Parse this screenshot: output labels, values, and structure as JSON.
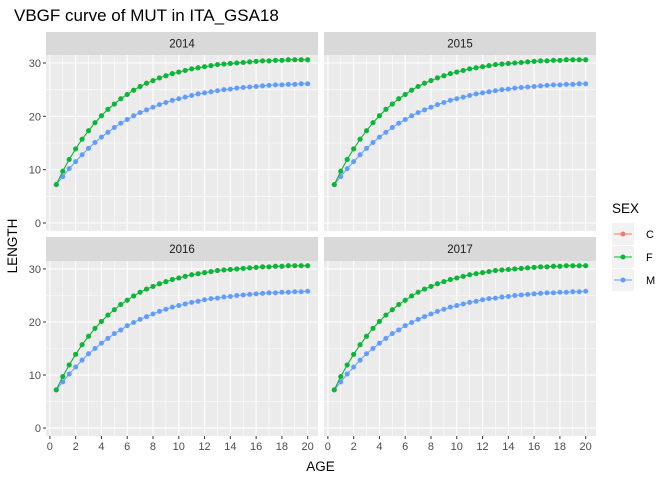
{
  "chart_data": {
    "type": "line",
    "title": "VBGF curve of MUT in ITA_GSA18",
    "xlabel": "AGE",
    "ylabel": "LENGTH",
    "xlim": [
      -0.3,
      20.8
    ],
    "ylim": [
      -1.5,
      31.5
    ],
    "x_ticks": [
      0,
      2,
      4,
      6,
      8,
      10,
      12,
      14,
      16,
      18,
      20
    ],
    "y_ticks": [
      0,
      10,
      20,
      30
    ],
    "x": [
      0.5,
      1.0,
      1.5,
      2.0,
      2.5,
      3.0,
      3.5,
      4.0,
      4.5,
      5.0,
      5.5,
      6.0,
      6.5,
      7.0,
      7.5,
      8.0,
      8.5,
      9.0,
      9.5,
      10.0,
      10.5,
      11.0,
      11.5,
      12.0,
      12.5,
      13.0,
      13.5,
      14.0,
      14.5,
      15.0,
      15.5,
      16.0,
      16.5,
      17.0,
      17.5,
      18.0,
      18.5,
      19.0,
      19.5,
      20.0
    ],
    "grid": true,
    "legend": {
      "title": "SEX",
      "position": "right",
      "entries": [
        {
          "label": "C",
          "color": "#F8766D"
        },
        {
          "label": "F",
          "color": "#00BA38"
        },
        {
          "label": "M",
          "color": "#619CFF"
        }
      ]
    },
    "panels": [
      {
        "label": "2014",
        "series": [
          {
            "name": "M",
            "color": "#619CFF",
            "values": [
              7.2,
              8.7,
              10.2,
              11.5,
              12.8,
              14.0,
              15.1,
              16.1,
              17.0,
              17.9,
              18.7,
              19.4,
              20.1,
              20.7,
              21.2,
              21.7,
              22.2,
              22.6,
              23.0,
              23.3,
              23.6,
              23.9,
              24.2,
              24.4,
              24.6,
              24.8,
              25.0,
              25.1,
              25.3,
              25.4,
              25.5,
              25.6,
              25.7,
              25.8,
              25.9,
              25.9,
              26.0,
              26.0,
              26.1,
              26.1
            ]
          },
          {
            "name": "C",
            "color": "#F8766D",
            "values": [
              7.2,
              9.7,
              11.9,
              13.9,
              15.7,
              17.3,
              18.8,
              20.1,
              21.3,
              22.3,
              23.3,
              24.1,
              24.9,
              25.6,
              26.2,
              26.7,
              27.2,
              27.6,
              28.0,
              28.3,
              28.6,
              28.9,
              29.1,
              29.3,
              29.5,
              29.7,
              29.8,
              29.9,
              30.0,
              30.1,
              30.2,
              30.3,
              30.4,
              30.4,
              30.5,
              30.5,
              30.6,
              30.6,
              30.6,
              30.6
            ]
          },
          {
            "name": "F",
            "color": "#00BA38",
            "values": [
              7.2,
              9.7,
              11.9,
              13.9,
              15.7,
              17.3,
              18.8,
              20.1,
              21.3,
              22.3,
              23.3,
              24.1,
              24.9,
              25.6,
              26.2,
              26.7,
              27.2,
              27.6,
              28.0,
              28.3,
              28.6,
              28.9,
              29.1,
              29.3,
              29.5,
              29.7,
              29.8,
              29.9,
              30.0,
              30.1,
              30.2,
              30.3,
              30.4,
              30.4,
              30.5,
              30.5,
              30.6,
              30.6,
              30.6,
              30.6
            ]
          }
        ]
      },
      {
        "label": "2015",
        "series": [
          {
            "name": "M",
            "color": "#619CFF",
            "values": [
              7.2,
              8.7,
              10.2,
              11.5,
              12.8,
              14.0,
              15.1,
              16.1,
              17.0,
              17.9,
              18.7,
              19.4,
              20.1,
              20.7,
              21.2,
              21.7,
              22.2,
              22.6,
              23.0,
              23.3,
              23.6,
              23.9,
              24.2,
              24.4,
              24.6,
              24.8,
              25.0,
              25.1,
              25.3,
              25.4,
              25.5,
              25.6,
              25.7,
              25.8,
              25.9,
              25.9,
              26.0,
              26.0,
              26.1,
              26.1
            ]
          },
          {
            "name": "C",
            "color": "#F8766D",
            "values": [
              7.2,
              9.7,
              11.9,
              13.9,
              15.7,
              17.3,
              18.8,
              20.1,
              21.3,
              22.3,
              23.3,
              24.1,
              24.9,
              25.6,
              26.2,
              26.7,
              27.2,
              27.6,
              28.0,
              28.3,
              28.6,
              28.9,
              29.1,
              29.3,
              29.5,
              29.7,
              29.8,
              29.9,
              30.0,
              30.1,
              30.2,
              30.3,
              30.4,
              30.4,
              30.5,
              30.5,
              30.6,
              30.6,
              30.6,
              30.6
            ]
          },
          {
            "name": "F",
            "color": "#00BA38",
            "values": [
              7.2,
              9.7,
              11.9,
              13.9,
              15.7,
              17.3,
              18.8,
              20.1,
              21.3,
              22.3,
              23.3,
              24.1,
              24.9,
              25.6,
              26.2,
              26.7,
              27.2,
              27.6,
              28.0,
              28.3,
              28.6,
              28.9,
              29.1,
              29.3,
              29.5,
              29.7,
              29.8,
              29.9,
              30.0,
              30.1,
              30.2,
              30.3,
              30.4,
              30.4,
              30.5,
              30.5,
              30.6,
              30.6,
              30.6,
              30.6
            ]
          }
        ]
      },
      {
        "label": "2016",
        "series": [
          {
            "name": "M",
            "color": "#619CFF",
            "values": [
              7.2,
              8.7,
              10.2,
              11.5,
              12.8,
              14.0,
              15.0,
              16.0,
              16.9,
              17.8,
              18.5,
              19.3,
              19.9,
              20.5,
              21.0,
              21.5,
              22.0,
              22.4,
              22.8,
              23.1,
              23.4,
              23.7,
              23.9,
              24.2,
              24.4,
              24.5,
              24.7,
              24.8,
              25.0,
              25.1,
              25.2,
              25.3,
              25.4,
              25.5,
              25.5,
              25.6,
              25.6,
              25.7,
              25.7,
              25.8
            ]
          },
          {
            "name": "C",
            "color": "#F8766D",
            "values": [
              7.2,
              9.7,
              11.9,
              13.9,
              15.7,
              17.3,
              18.8,
              20.1,
              21.3,
              22.3,
              23.3,
              24.1,
              24.9,
              25.6,
              26.2,
              26.7,
              27.2,
              27.6,
              28.0,
              28.3,
              28.6,
              28.9,
              29.1,
              29.3,
              29.5,
              29.7,
              29.8,
              29.9,
              30.0,
              30.1,
              30.2,
              30.3,
              30.4,
              30.4,
              30.5,
              30.5,
              30.6,
              30.6,
              30.6,
              30.6
            ]
          },
          {
            "name": "F",
            "color": "#00BA38",
            "values": [
              7.2,
              9.7,
              11.9,
              13.9,
              15.7,
              17.3,
              18.8,
              20.1,
              21.3,
              22.3,
              23.3,
              24.1,
              24.9,
              25.6,
              26.2,
              26.7,
              27.2,
              27.6,
              28.0,
              28.3,
              28.6,
              28.9,
              29.1,
              29.3,
              29.5,
              29.7,
              29.8,
              29.9,
              30.0,
              30.1,
              30.2,
              30.3,
              30.4,
              30.4,
              30.5,
              30.5,
              30.6,
              30.6,
              30.6,
              30.6
            ]
          }
        ]
      },
      {
        "label": "2017",
        "series": [
          {
            "name": "M",
            "color": "#619CFF",
            "values": [
              7.2,
              8.7,
              10.2,
              11.5,
              12.8,
              14.0,
              15.0,
              16.0,
              16.9,
              17.8,
              18.5,
              19.3,
              19.9,
              20.5,
              21.0,
              21.5,
              22.0,
              22.4,
              22.8,
              23.1,
              23.4,
              23.7,
              23.9,
              24.2,
              24.4,
              24.5,
              24.7,
              24.8,
              25.0,
              25.1,
              25.2,
              25.3,
              25.4,
              25.5,
              25.5,
              25.6,
              25.6,
              25.7,
              25.7,
              25.8
            ]
          },
          {
            "name": "C",
            "color": "#F8766D",
            "values": [
              7.2,
              9.7,
              11.9,
              13.9,
              15.7,
              17.3,
              18.8,
              20.1,
              21.3,
              22.3,
              23.3,
              24.1,
              24.9,
              25.6,
              26.2,
              26.7,
              27.2,
              27.6,
              28.0,
              28.3,
              28.6,
              28.9,
              29.1,
              29.3,
              29.5,
              29.7,
              29.8,
              29.9,
              30.0,
              30.1,
              30.2,
              30.3,
              30.4,
              30.4,
              30.5,
              30.5,
              30.6,
              30.6,
              30.6,
              30.6
            ]
          },
          {
            "name": "F",
            "color": "#00BA38",
            "values": [
              7.2,
              9.7,
              11.9,
              13.9,
              15.7,
              17.3,
              18.8,
              20.1,
              21.3,
              22.3,
              23.3,
              24.1,
              24.9,
              25.6,
              26.2,
              26.7,
              27.2,
              27.6,
              28.0,
              28.3,
              28.6,
              28.9,
              29.1,
              29.3,
              29.5,
              29.7,
              29.8,
              29.9,
              30.0,
              30.1,
              30.2,
              30.3,
              30.4,
              30.4,
              30.5,
              30.5,
              30.6,
              30.6,
              30.6,
              30.6
            ]
          }
        ]
      }
    ]
  }
}
